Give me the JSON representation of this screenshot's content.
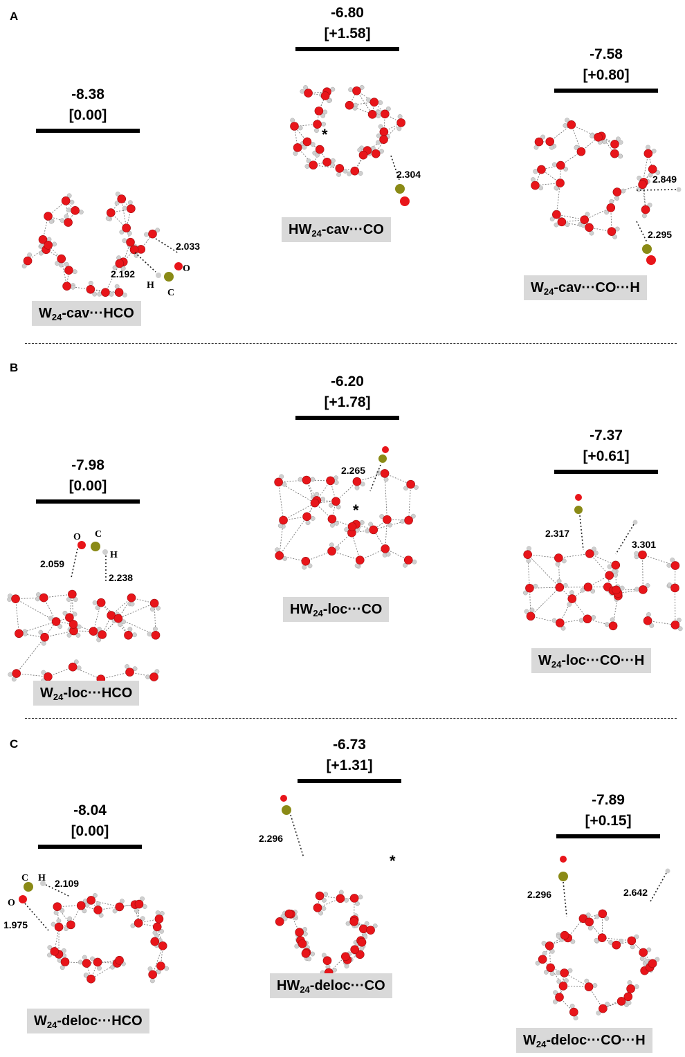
{
  "panels": {
    "a": {
      "letter": "A",
      "left": {
        "energy": "-8.38",
        "relative": "[0.00]",
        "label_main": "W",
        "label_sub": "24",
        "label_rest": "-cav···HCO",
        "d1": "2.033",
        "d2": "2.192",
        "atom_o": "O",
        "atom_h": "H",
        "atom_c": "C"
      },
      "middle": {
        "energy": "-6.80",
        "relative": "[+1.58]",
        "label_main": "HW",
        "label_sub": "24",
        "label_rest": "-cav···CO",
        "d1": "2.304",
        "star": "*"
      },
      "right": {
        "energy": "-7.58",
        "relative": "[+0.80]",
        "label_main": "W",
        "label_sub": "24",
        "label_rest": "-cav···CO···H",
        "d1": "2.849",
        "d2": "2.295"
      }
    },
    "b": {
      "letter": "B",
      "left": {
        "energy": "-7.98",
        "relative": "[0.00]",
        "label_main": "W",
        "label_sub": "24",
        "label_rest": "-loc···HCO",
        "d1": "2.059",
        "d2": "2.238",
        "atom_o": "O",
        "atom_c": "C",
        "atom_h": "H"
      },
      "middle": {
        "energy": "-6.20",
        "relative": "[+1.78]",
        "label_main": "HW",
        "label_sub": "24",
        "label_rest": "-loc···CO",
        "d1": "2.265",
        "star": "*"
      },
      "right": {
        "energy": "-7.37",
        "relative": "[+0.61]",
        "label_main": "W",
        "label_sub": "24",
        "label_rest": "-loc···CO···H",
        "d1": "2.317",
        "d2": "3.301"
      }
    },
    "c": {
      "letter": "C",
      "left": {
        "energy": "-8.04",
        "relative": "[0.00]",
        "label_main": "W",
        "label_sub": "24",
        "label_rest": "-deloc···HCO",
        "d1": "2.109",
        "d2": "1.975",
        "atom_c": "C",
        "atom_h": "H",
        "atom_o": "O"
      },
      "middle": {
        "energy": "-6.73",
        "relative": "[+1.31]",
        "label_main": "HW",
        "label_sub": "24",
        "label_rest": "-deloc···CO",
        "d1": "2.296",
        "star": "*"
      },
      "right": {
        "energy": "-7.89",
        "relative": "[+0.15]",
        "label_main": "W",
        "label_sub": "24",
        "label_rest": "-deloc···CO···H",
        "d1": "2.296",
        "d2": "2.642"
      }
    }
  },
  "colors": {
    "oxygen": "#e8151a",
    "hydrogen": "#cfcfcf",
    "carbon": "#8a8a16",
    "label_bg": "#d9d9d9",
    "level_bar": "#000000"
  }
}
